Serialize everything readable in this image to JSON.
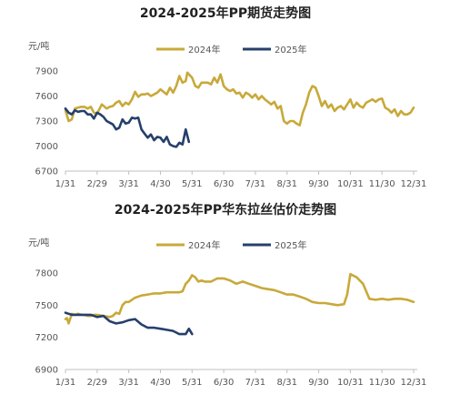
{
  "colors": {
    "s2024": "#c8a93a",
    "s2025": "#26406b",
    "axis": "#bfbfbf",
    "grid": "#e8e8e8"
  },
  "chart_data": [
    {
      "type": "line",
      "title": "2024-2025年PP期货走势图",
      "unit": "元/吨",
      "ylim": [
        6700,
        7900
      ],
      "yticks": [
        6700,
        7000,
        7300,
        7600,
        7900
      ],
      "xticks": [
        "1/31",
        "2/29",
        "3/31",
        "4/30",
        "5/31",
        "6/30",
        "7/31",
        "8/31",
        "9/30",
        "10/31",
        "11/30",
        "12/31"
      ],
      "grid": false,
      "legend": "top",
      "series": [
        {
          "name": "2024年",
          "x": [
            0,
            0.1,
            0.2,
            0.3,
            0.4,
            0.5,
            0.6,
            0.7,
            0.8,
            0.9,
            1,
            1.15,
            1.3,
            1.4,
            1.5,
            1.6,
            1.7,
            1.8,
            1.9,
            2,
            2.1,
            2.2,
            2.3,
            2.4,
            2.5,
            2.6,
            2.7,
            2.8,
            2.9,
            3,
            3.1,
            3.2,
            3.3,
            3.4,
            3.5,
            3.6,
            3.7,
            3.8,
            3.85,
            3.9,
            4,
            4.1,
            4.2,
            4.3,
            4.4,
            4.5,
            4.6,
            4.7,
            4.8,
            4.9,
            5,
            5.1,
            5.2,
            5.3,
            5.4,
            5.5,
            5.6,
            5.7,
            5.8,
            5.9,
            6,
            6.1,
            6.2,
            6.3,
            6.4,
            6.5,
            6.6,
            6.7,
            6.8,
            6.9,
            7,
            7.1,
            7.2,
            7.3,
            7.4,
            7.5,
            7.6,
            7.7,
            7.8,
            7.9,
            8,
            8.1,
            8.2,
            8.3,
            8.4,
            8.5,
            8.6,
            8.7,
            8.8,
            8.9,
            9,
            9.1,
            9.2,
            9.3,
            9.4,
            9.5,
            9.6,
            9.7,
            9.8,
            9.9,
            10,
            10.1,
            10.2,
            10.3,
            10.4,
            10.5,
            10.6,
            10.7,
            10.8,
            10.9,
            11
          ],
          "y": [
            7430,
            7300,
            7320,
            7450,
            7460,
            7470,
            7470,
            7450,
            7470,
            7400,
            7390,
            7500,
            7450,
            7470,
            7480,
            7520,
            7540,
            7480,
            7520,
            7500,
            7560,
            7650,
            7590,
            7620,
            7620,
            7630,
            7600,
            7620,
            7640,
            7680,
            7650,
            7620,
            7700,
            7640,
            7720,
            7840,
            7760,
            7780,
            7880,
            7860,
            7820,
            7720,
            7700,
            7760,
            7760,
            7760,
            7740,
            7820,
            7760,
            7860,
            7720,
            7680,
            7660,
            7680,
            7630,
            7640,
            7580,
            7640,
            7620,
            7580,
            7620,
            7560,
            7600,
            7560,
            7530,
            7500,
            7530,
            7450,
            7480,
            7300,
            7270,
            7300,
            7300,
            7270,
            7250,
            7400,
            7500,
            7640,
            7720,
            7700,
            7600,
            7480,
            7540,
            7460,
            7500,
            7420,
            7460,
            7480,
            7440,
            7500,
            7560,
            7460,
            7520,
            7480,
            7460,
            7520,
            7540,
            7560,
            7530,
            7560,
            7570,
            7460,
            7440,
            7400,
            7440,
            7360,
            7420,
            7380,
            7380,
            7400,
            7460
          ]
        },
        {
          "name": "2025年",
          "x": [
            0,
            0.1,
            0.2,
            0.3,
            0.4,
            0.5,
            0.6,
            0.7,
            0.8,
            0.9,
            1,
            1.1,
            1.2,
            1.3,
            1.4,
            1.5,
            1.6,
            1.7,
            1.8,
            1.9,
            2,
            2.1,
            2.2,
            2.3,
            2.4,
            2.5,
            2.6,
            2.7,
            2.8,
            2.9,
            3,
            3.1,
            3.2,
            3.3,
            3.4,
            3.5,
            3.6,
            3.7,
            3.8,
            3.9
          ],
          "y": [
            7450,
            7400,
            7380,
            7430,
            7410,
            7420,
            7420,
            7380,
            7380,
            7330,
            7400,
            7380,
            7350,
            7300,
            7280,
            7260,
            7200,
            7220,
            7320,
            7270,
            7280,
            7340,
            7330,
            7340,
            7200,
            7150,
            7100,
            7140,
            7070,
            7110,
            7100,
            7050,
            7110,
            7020,
            7000,
            6990,
            7040,
            7020,
            7200,
            7050
          ]
        }
      ]
    },
    {
      "type": "line",
      "title": "2024-2025年PP华东拉丝估价走势图",
      "unit": "元/吨",
      "ylim": [
        6900,
        7800
      ],
      "yticks": [
        6900,
        7200,
        7500,
        7800
      ],
      "xticks": [
        "1/31",
        "2/29",
        "3/31",
        "4/30",
        "5/31",
        "6/30",
        "7/31",
        "8/31",
        "9/30",
        "10/31",
        "11/30",
        "12/31"
      ],
      "grid": false,
      "legend": "top",
      "series": [
        {
          "name": "2024年",
          "x": [
            0,
            0.05,
            0.1,
            0.2,
            0.3,
            0.4,
            0.5,
            0.6,
            0.7,
            0.8,
            0.9,
            1,
            1.2,
            1.4,
            1.5,
            1.6,
            1.7,
            1.8,
            1.9,
            2,
            2.2,
            2.4,
            2.6,
            2.8,
            3,
            3.2,
            3.4,
            3.6,
            3.7,
            3.8,
            3.9,
            4,
            4.1,
            4.2,
            4.3,
            4.4,
            4.6,
            4.8,
            5,
            5.2,
            5.4,
            5.6,
            5.8,
            6,
            6.2,
            6.4,
            6.6,
            6.8,
            7,
            7.2,
            7.4,
            7.6,
            7.8,
            8,
            8.2,
            8.4,
            8.6,
            8.8,
            8.9,
            9,
            9.2,
            9.4,
            9.6,
            9.8,
            10,
            10.2,
            10.4,
            10.6,
            10.8,
            11
          ],
          "y": [
            7370,
            7380,
            7330,
            7420,
            7410,
            7420,
            7410,
            7410,
            7400,
            7400,
            7410,
            7410,
            7400,
            7390,
            7400,
            7430,
            7420,
            7500,
            7530,
            7530,
            7570,
            7590,
            7600,
            7610,
            7610,
            7620,
            7620,
            7620,
            7630,
            7700,
            7730,
            7780,
            7760,
            7720,
            7730,
            7720,
            7720,
            7750,
            7750,
            7730,
            7700,
            7720,
            7700,
            7680,
            7660,
            7650,
            7640,
            7620,
            7600,
            7600,
            7580,
            7560,
            7530,
            7520,
            7520,
            7510,
            7500,
            7510,
            7600,
            7790,
            7760,
            7700,
            7560,
            7550,
            7560,
            7550,
            7560,
            7560,
            7550,
            7530
          ]
        },
        {
          "name": "2025年",
          "x": [
            0,
            0.1,
            0.2,
            0.4,
            0.6,
            0.8,
            1,
            1.2,
            1.4,
            1.6,
            1.8,
            2,
            2.2,
            2.4,
            2.6,
            2.8,
            3,
            3.2,
            3.4,
            3.6,
            3.8,
            3.9,
            4
          ],
          "y": [
            7430,
            7420,
            7410,
            7410,
            7410,
            7410,
            7390,
            7400,
            7350,
            7330,
            7340,
            7360,
            7370,
            7320,
            7290,
            7290,
            7280,
            7270,
            7260,
            7230,
            7230,
            7280,
            7230
          ]
        }
      ]
    }
  ]
}
